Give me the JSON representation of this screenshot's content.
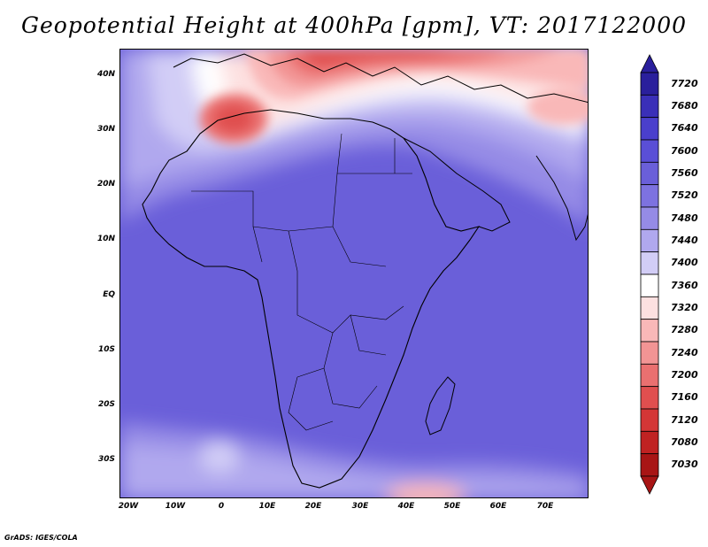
{
  "title": "Geopotential Height at 400hPa [gpm], VT: 2017122000",
  "footer": "GrADS: IGES/COLA",
  "map": {
    "lat_labels": [
      "40N",
      "30N",
      "20N",
      "10N",
      "EQ",
      "10S",
      "20S",
      "30S"
    ],
    "lon_labels": [
      "20W",
      "10W",
      "0",
      "10E",
      "20E",
      "30E",
      "40E",
      "50E",
      "60E",
      "70E"
    ],
    "base_color": "#6a5fd9",
    "coast_color": "#000000"
  },
  "colorbar": {
    "levels": [
      "7720",
      "7680",
      "7640",
      "7600",
      "7560",
      "7520",
      "7480",
      "7440",
      "7400",
      "7360",
      "7320",
      "7280",
      "7240",
      "7200",
      "7160",
      "7120",
      "7080",
      "7030"
    ],
    "colors": [
      "#2a1f9c",
      "#3a2fb8",
      "#4a3fcc",
      "#5a4fd6",
      "#6a5fd9",
      "#7d72e0",
      "#958be6",
      "#b0a8ee",
      "#d2cdf6",
      "#ffffff",
      "#fde0e0",
      "#f9b8b8",
      "#f29494",
      "#ea7070",
      "#e04f4f",
      "#d43636",
      "#c02222",
      "#a81515"
    ]
  }
}
